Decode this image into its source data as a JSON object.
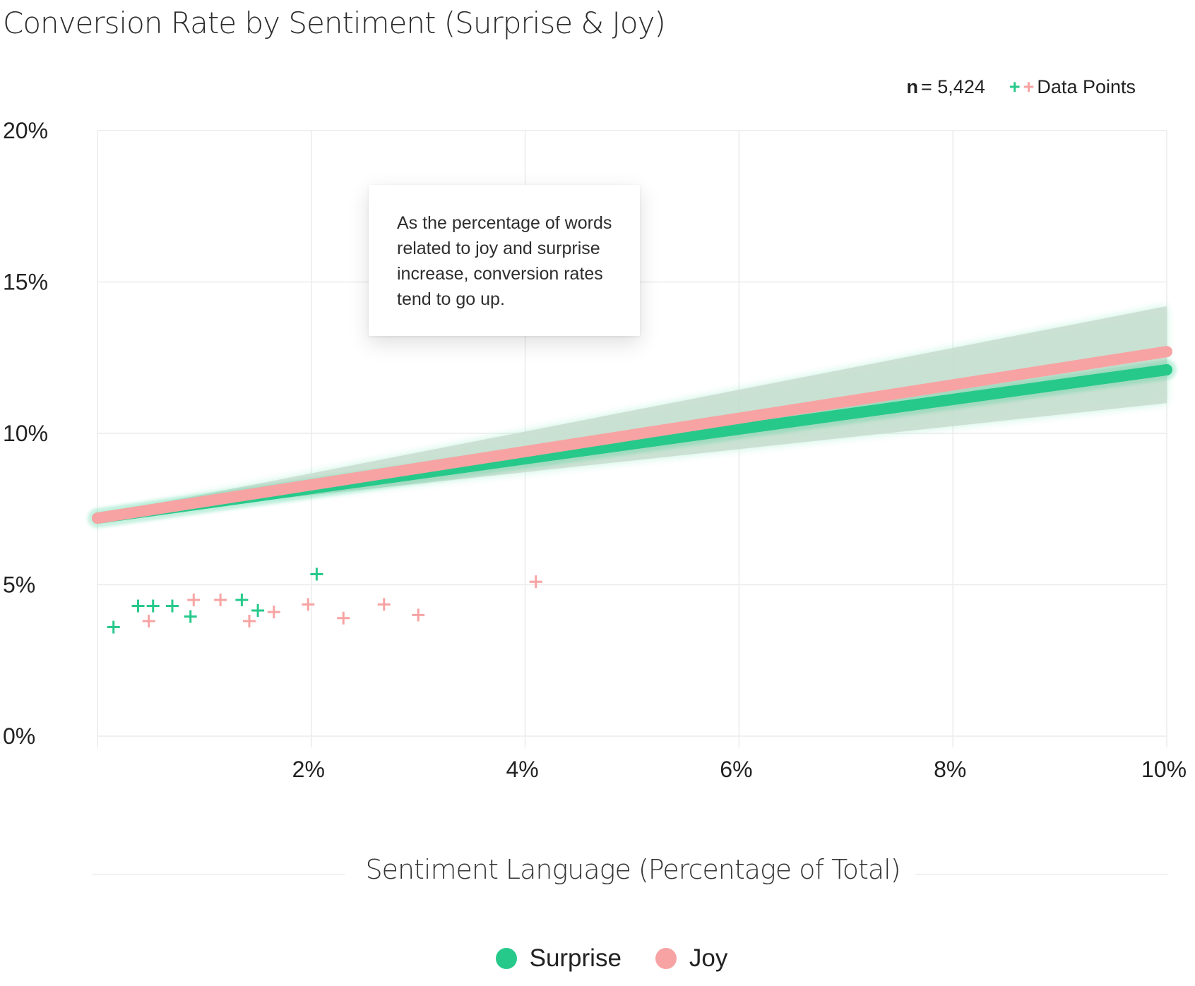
{
  "chart_data": {
    "type": "scatter",
    "title": "Conversion Rate by Sentiment (Surprise & Joy)",
    "xlabel": "Sentiment Language (Percentage of Total)",
    "ylabel": "",
    "xlim": [
      0,
      10
    ],
    "ylim": [
      0,
      20
    ],
    "x_ticks": [
      "2%",
      "4%",
      "6%",
      "8%",
      "10%"
    ],
    "y_ticks": [
      "0%",
      "5%",
      "10%",
      "15%",
      "20%"
    ],
    "grid": true,
    "legend_position": "bottom-center",
    "sample_size_label": "n",
    "sample_size_value": "= 5,424",
    "data_points_label": "Data Points",
    "annotation": "As the percentage of words related to joy and surprise increase, conversion rates tend to go up.",
    "series": [
      {
        "name": "Surprise",
        "color": "#27c98a",
        "points": [
          {
            "x": 0.15,
            "y": 3.6
          },
          {
            "x": 0.38,
            "y": 4.3
          },
          {
            "x": 0.52,
            "y": 4.3
          },
          {
            "x": 0.7,
            "y": 4.3
          },
          {
            "x": 0.87,
            "y": 3.95
          },
          {
            "x": 1.35,
            "y": 4.5
          },
          {
            "x": 1.5,
            "y": 4.15
          },
          {
            "x": 2.05,
            "y": 5.35
          }
        ],
        "trend": {
          "x": [
            0,
            10
          ],
          "y": [
            7.2,
            12.1
          ]
        },
        "confidence_band": {
          "x": [
            0,
            10
          ],
          "lower": [
            7.2,
            11.0
          ],
          "upper": [
            7.3,
            14.2
          ]
        }
      },
      {
        "name": "Joy",
        "color": "#f7a3a3",
        "points": [
          {
            "x": 0.48,
            "y": 3.8
          },
          {
            "x": 0.9,
            "y": 4.5
          },
          {
            "x": 1.15,
            "y": 4.5
          },
          {
            "x": 1.42,
            "y": 3.8
          },
          {
            "x": 1.65,
            "y": 4.1
          },
          {
            "x": 1.97,
            "y": 4.35
          },
          {
            "x": 2.3,
            "y": 3.9
          },
          {
            "x": 2.68,
            "y": 4.35
          },
          {
            "x": 3.0,
            "y": 4.0
          },
          {
            "x": 4.1,
            "y": 5.1
          }
        ],
        "trend": {
          "x": [
            0,
            10
          ],
          "y": [
            7.2,
            12.7
          ]
        }
      }
    ]
  }
}
